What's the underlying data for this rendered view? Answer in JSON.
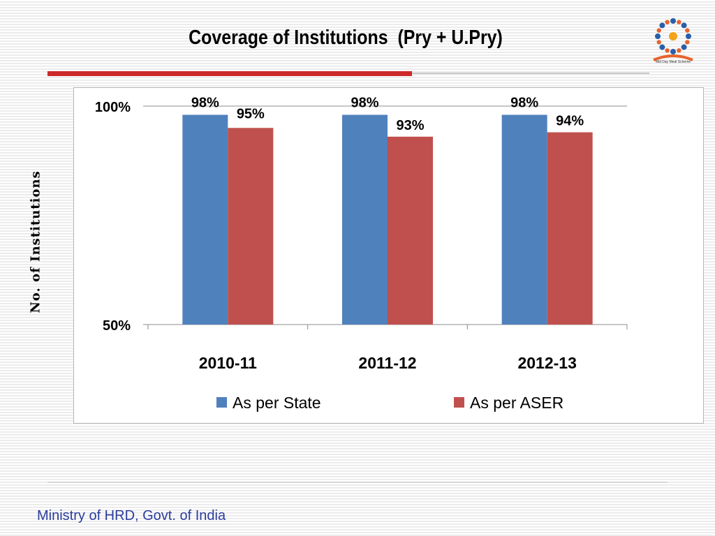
{
  "slide": {
    "title": "Coverage of Institutions  (Pry + U.Pry)",
    "footer": "Ministry of HRD, Govt. of India",
    "logo": {
      "icon": "mid-day-meal-logo-icon",
      "text": "Mid Day Meal Scheme"
    },
    "colors": {
      "title_bar": "#cc2a2a",
      "footer_text": "#2a3c9c"
    }
  },
  "chart_data": {
    "type": "bar",
    "title": "",
    "xlabel": "",
    "ylabel": "No. of Institutions",
    "categories": [
      "2010-11",
      "2011-12",
      "2012-13"
    ],
    "series": [
      {
        "name": "As per State",
        "color": "#4f81bd",
        "values": [
          98,
          98,
          98
        ],
        "labels": [
          "98%",
          "98%",
          "98%"
        ]
      },
      {
        "name": "As per ASER",
        "color": "#c0504d",
        "values": [
          95,
          93,
          94
        ],
        "labels": [
          "95%",
          "93%",
          "94%"
        ]
      }
    ],
    "ylim": [
      50,
      100
    ],
    "y_ticks": [
      50,
      100
    ],
    "y_tick_labels": [
      "50%",
      "100%"
    ],
    "grid": false,
    "legend": "bottom"
  }
}
